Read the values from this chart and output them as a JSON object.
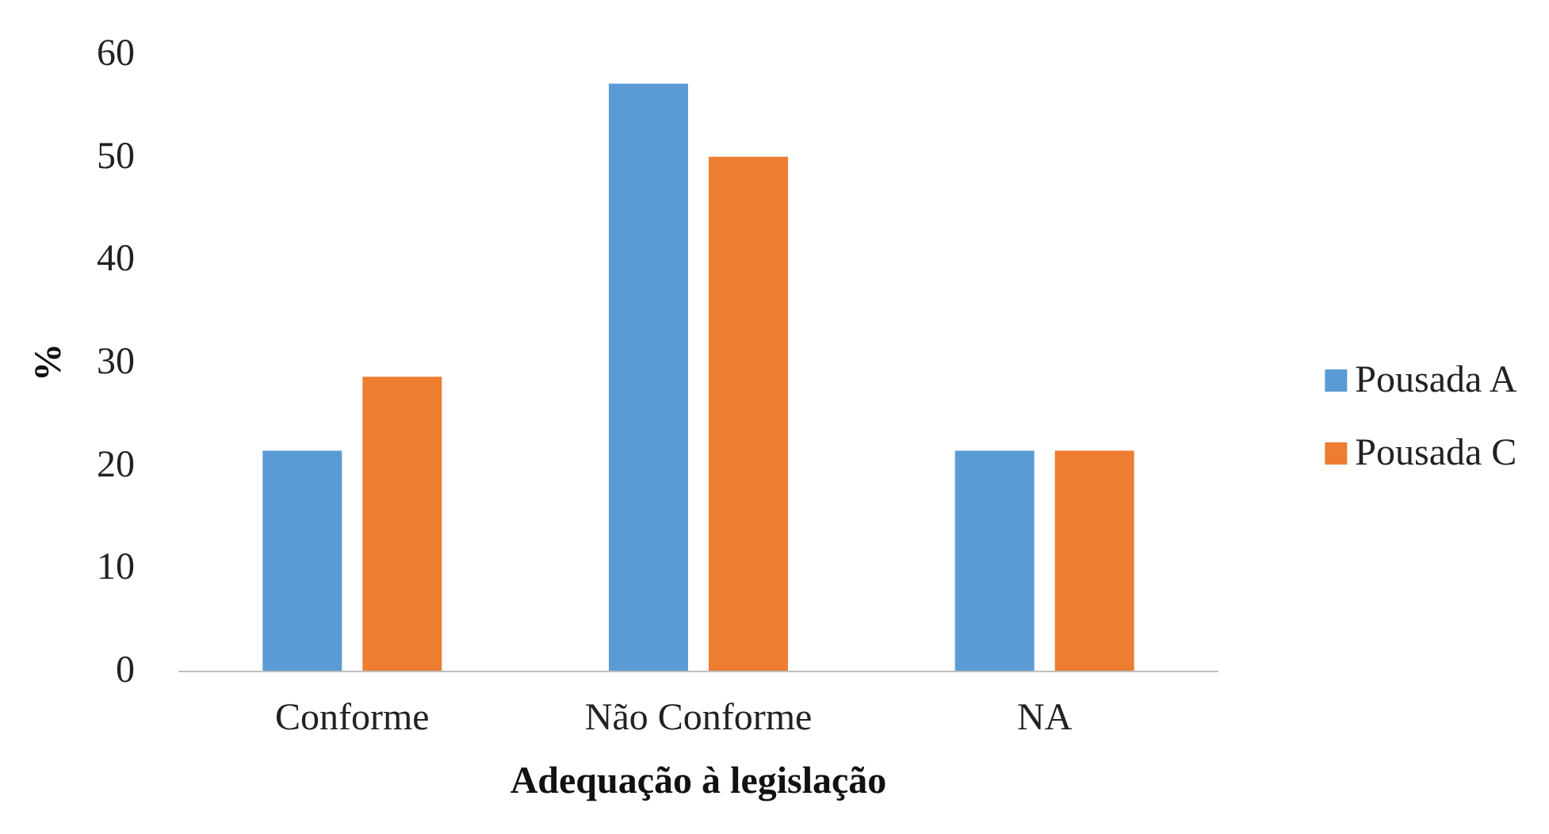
{
  "chart_data": {
    "type": "bar",
    "xlabel": "Adequação à legislação",
    "ylabel": "%",
    "categories": [
      "Conforme",
      "Não Conforme",
      "NA"
    ],
    "series": [
      {
        "name": "Pousada A",
        "color": "#5b9bd5",
        "values": [
          21.4,
          57.1,
          21.4
        ]
      },
      {
        "name": "Pousada C",
        "color": "#ed7d31",
        "values": [
          28.6,
          50,
          21.4
        ]
      }
    ],
    "ylim": [
      0,
      60
    ],
    "yticks": [
      0,
      10,
      20,
      30,
      40,
      50,
      60
    ],
    "grid": false,
    "legend": "right"
  }
}
